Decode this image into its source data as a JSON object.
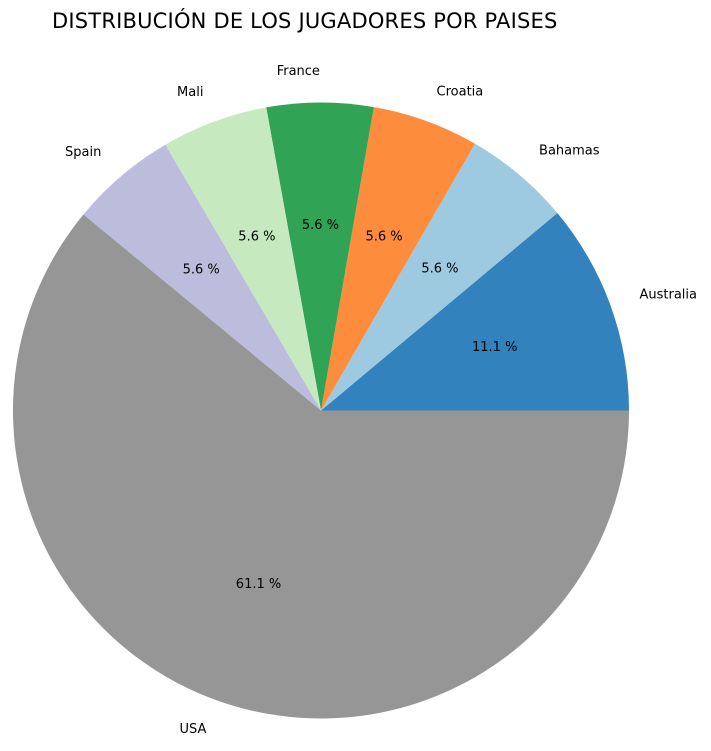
{
  "chart_data": {
    "type": "pie",
    "title": "DISTRIBUCIÓN DE LOS JUGADORES POR PAISES",
    "categories": [
      "Australia",
      "Bahamas",
      "Croatia",
      "France",
      "Mali",
      "Spain",
      "USA"
    ],
    "values": [
      11.1,
      5.6,
      5.6,
      5.6,
      5.6,
      5.6,
      61.1
    ],
    "value_labels": [
      "11.1 %",
      "5.6 %",
      "5.6 %",
      "5.6 %",
      "5.6 %",
      "5.6 %",
      "61.1 %"
    ],
    "colors": [
      "#3182bd",
      "#9ecae1",
      "#fd8d3c",
      "#31a354",
      "#c7e9c0",
      "#bcbddc",
      "#969696"
    ],
    "start_angle_deg": 0,
    "direction": "counterclockwise",
    "legend": "none"
  }
}
